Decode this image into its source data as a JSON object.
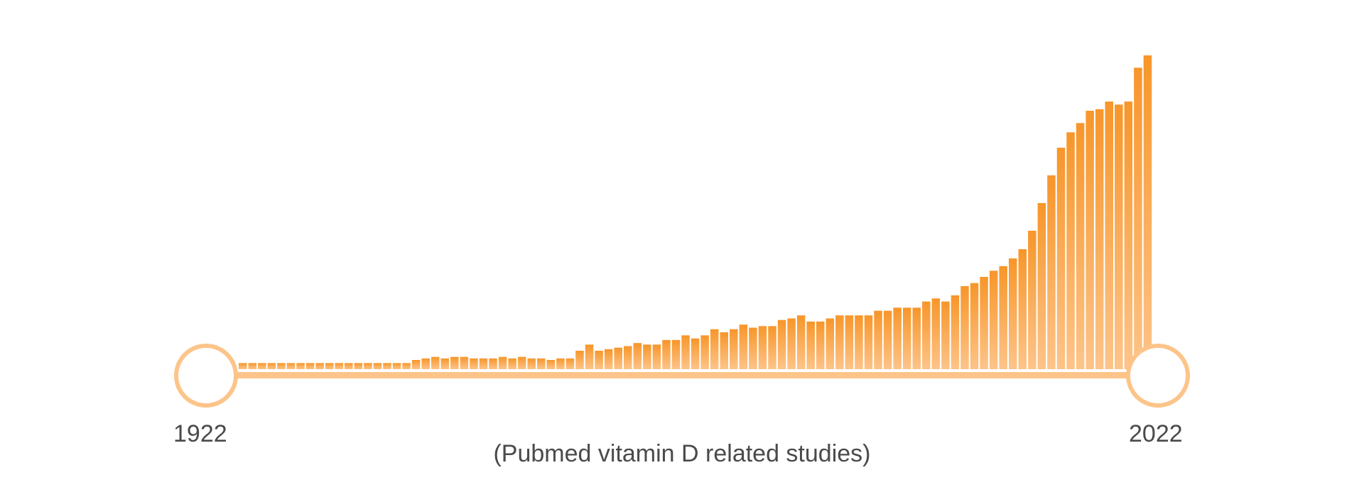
{
  "timeline": {
    "start_label": "1922",
    "end_label": "2022",
    "caption": "(Pubmed vitamin D related studies)"
  },
  "colors": {
    "bar_top": "#f7962a",
    "bar_bottom": "#fdc489",
    "track": "#fdc489",
    "knob_stroke": "#fdc489",
    "text": "#4a4a4a"
  },
  "chart_data": {
    "type": "bar",
    "x_start": 1922,
    "x_end": 2022,
    "ylim": [
      0,
      100
    ],
    "grid": false,
    "values": [
      2,
      2,
      2,
      2,
      2,
      2,
      2,
      2,
      2,
      2,
      2,
      2,
      2,
      2,
      2,
      2,
      2,
      2,
      3,
      3.5,
      4,
      3.5,
      4,
      4,
      3.5,
      3.5,
      3.5,
      4,
      3.5,
      4,
      3.5,
      3.5,
      3,
      3.5,
      3.5,
      6,
      8,
      6,
      6.5,
      7,
      7.5,
      8.5,
      8,
      8,
      9.5,
      9.5,
      11,
      10,
      11,
      13,
      12,
      13,
      14.5,
      13.5,
      14,
      14,
      16,
      16.5,
      17.5,
      15.5,
      15.5,
      16.5,
      17.5,
      17.5,
      17.5,
      17.5,
      19,
      19,
      20,
      20,
      20,
      22,
      23,
      22,
      24,
      27,
      28,
      30,
      32,
      33.5,
      36,
      39,
      45,
      54,
      63,
      72,
      77,
      80,
      84,
      84.5,
      87,
      86,
      87,
      98,
      102
    ]
  }
}
